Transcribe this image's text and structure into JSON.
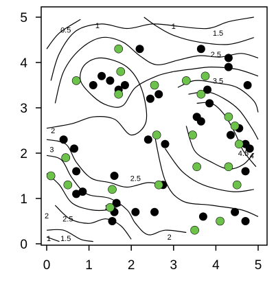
{
  "chart_data": {
    "type": "scatter",
    "title": "",
    "xlabel": "",
    "ylabel": "",
    "xlim": [
      0,
      5
    ],
    "ylim": [
      0,
      5
    ],
    "x_ticks": [
      0,
      1,
      2,
      3,
      4,
      5
    ],
    "y_ticks": [
      0,
      1,
      2,
      3,
      4,
      5
    ],
    "x_tick_labels": [
      "0",
      "1",
      "2",
      "3",
      "4",
      "5"
    ],
    "y_tick_labels": [
      "0",
      "1",
      "2",
      "3",
      "4",
      "5"
    ],
    "colors": {
      "black_points": "#000000",
      "green_points": "#6cc24a",
      "contours": "#000000"
    },
    "contour_labels": [
      {
        "text": "0.5",
        "x": 0.45,
        "y": 4.72
      },
      {
        "text": "1",
        "x": 1.2,
        "y": 4.82
      },
      {
        "text": "1",
        "x": 3.0,
        "y": 4.8
      },
      {
        "text": "1.5",
        "x": 4.05,
        "y": 4.65
      },
      {
        "text": "2.5",
        "x": 4.0,
        "y": 4.18
      },
      {
        "text": "3.5",
        "x": 4.05,
        "y": 3.6
      },
      {
        "text": "4.5",
        "x": 4.65,
        "y": 2.0
      },
      {
        "text": "4",
        "x": 4.85,
        "y": 1.95
      },
      {
        "text": "2",
        "x": 0.15,
        "y": 2.5
      },
      {
        "text": "3",
        "x": 0.12,
        "y": 2.08
      },
      {
        "text": "2.5",
        "x": 2.1,
        "y": 1.45
      },
      {
        "text": "3.5",
        "x": 1.5,
        "y": 0.8
      },
      {
        "text": "2",
        "x": 0.0,
        "y": 0.62
      },
      {
        "text": "2.5",
        "x": 0.5,
        "y": 0.55
      },
      {
        "text": "1.5",
        "x": 0.45,
        "y": 0.12
      },
      {
        "text": "1",
        "x": 0.05,
        "y": 0.12
      },
      {
        "text": "2",
        "x": 2.9,
        "y": 0.15
      }
    ],
    "contours": [
      [
        [
          0.0,
          4.3
        ],
        [
          0.3,
          4.65
        ],
        [
          0.8,
          4.95
        ]
      ],
      [
        [
          0.1,
          3.6
        ],
        [
          0.3,
          4.2
        ],
        [
          0.7,
          4.7
        ],
        [
          1.3,
          4.85
        ],
        [
          1.9,
          4.75
        ],
        [
          2.5,
          4.85
        ],
        [
          3.1,
          4.8
        ]
      ],
      [
        [
          3.1,
          4.8
        ],
        [
          3.8,
          4.75
        ],
        [
          4.3,
          4.9
        ],
        [
          4.9,
          5.0
        ]
      ],
      [
        [
          2.3,
          5.0
        ],
        [
          2.6,
          4.8
        ],
        [
          3.0,
          4.6
        ],
        [
          3.6,
          4.45
        ],
        [
          4.3,
          4.4
        ],
        [
          4.9,
          4.55
        ]
      ],
      [
        [
          0.2,
          3.1
        ],
        [
          0.4,
          3.8
        ],
        [
          0.8,
          4.3
        ],
        [
          1.3,
          4.55
        ],
        [
          1.8,
          4.45
        ],
        [
          2.2,
          4.15
        ],
        [
          2.6,
          3.95
        ],
        [
          3.1,
          4.05
        ],
        [
          3.6,
          4.15
        ],
        [
          4.1,
          4.12
        ],
        [
          4.6,
          4.2
        ],
        [
          5.0,
          4.1
        ]
      ],
      [
        [
          0.0,
          2.55
        ],
        [
          0.6,
          2.65
        ],
        [
          1.1,
          2.8
        ],
        [
          1.6,
          2.75
        ],
        [
          2.0,
          2.4
        ],
        [
          2.35,
          2.7
        ],
        [
          2.25,
          3.4
        ],
        [
          1.9,
          3.9
        ],
        [
          1.3,
          4.1
        ],
        [
          0.9,
          3.95
        ],
        [
          0.8,
          3.6
        ],
        [
          1.1,
          3.25
        ],
        [
          1.45,
          3.05
        ],
        [
          1.8,
          3.05
        ],
        [
          2.1,
          3.45
        ],
        [
          2.6,
          3.7
        ],
        [
          3.0,
          3.8
        ]
      ],
      [
        [
          3.0,
          3.8
        ],
        [
          3.4,
          3.85
        ],
        [
          3.9,
          3.9
        ],
        [
          4.5,
          3.85
        ],
        [
          5.0,
          3.7
        ]
      ],
      [
        [
          3.1,
          3.45
        ],
        [
          3.5,
          3.6
        ],
        [
          4.0,
          3.55
        ],
        [
          4.5,
          3.45
        ],
        [
          4.9,
          3.15
        ],
        [
          5.0,
          2.9
        ]
      ],
      [
        [
          3.35,
          3.3
        ],
        [
          3.8,
          3.35
        ],
        [
          4.2,
          3.2
        ],
        [
          4.55,
          2.95
        ],
        [
          4.85,
          2.55
        ],
        [
          5.0,
          2.3
        ]
      ],
      [
        [
          3.55,
          3.1
        ],
        [
          3.9,
          3.1
        ],
        [
          4.2,
          2.85
        ],
        [
          4.45,
          2.45
        ],
        [
          4.65,
          2.05
        ],
        [
          4.95,
          1.7
        ]
      ],
      [
        [
          3.3,
          2.6
        ],
        [
          3.5,
          2.05
        ],
        [
          3.9,
          1.8
        ],
        [
          4.3,
          1.65
        ],
        [
          4.65,
          1.75
        ],
        [
          4.9,
          2.0
        ]
      ],
      [
        [
          2.8,
          2.1
        ],
        [
          3.2,
          1.6
        ],
        [
          3.7,
          1.3
        ],
        [
          4.4,
          1.15
        ],
        [
          4.9,
          1.2
        ]
      ],
      [
        [
          2.55,
          2.4
        ],
        [
          2.8,
          1.4
        ],
        [
          3.2,
          0.95
        ],
        [
          3.9,
          0.85
        ],
        [
          4.6,
          0.75
        ],
        [
          5.0,
          0.6
        ]
      ],
      [
        [
          0.0,
          2.3
        ],
        [
          0.45,
          2.2
        ],
        [
          0.7,
          1.8
        ],
        [
          1.05,
          1.45
        ],
        [
          1.5,
          1.35
        ],
        [
          1.9,
          1.25
        ],
        [
          2.4,
          1.35
        ],
        [
          2.75,
          1.3
        ]
      ],
      [
        [
          0.0,
          1.95
        ],
        [
          0.35,
          1.85
        ],
        [
          0.6,
          1.45
        ],
        [
          0.95,
          1.1
        ],
        [
          1.5,
          1.0
        ],
        [
          1.9,
          0.75
        ],
        [
          2.1,
          0.45
        ],
        [
          2.4,
          0.2
        ],
        [
          2.8,
          0.3
        ],
        [
          3.3,
          0.25
        ]
      ],
      [
        [
          0.0,
          1.55
        ],
        [
          0.3,
          1.3
        ],
        [
          0.6,
          0.9
        ],
        [
          1.05,
          0.75
        ],
        [
          1.45,
          0.75
        ],
        [
          1.75,
          0.85
        ]
      ],
      [
        [
          0.2,
          0.85
        ],
        [
          0.55,
          0.55
        ],
        [
          1.0,
          0.45
        ],
        [
          1.4,
          0.55
        ],
        [
          1.75,
          0.4
        ],
        [
          2.0,
          0.1
        ]
      ],
      [
        [
          0.0,
          0.3
        ],
        [
          0.4,
          0.3
        ],
        [
          0.8,
          0.1
        ],
        [
          1.1,
          0.05
        ]
      ],
      [
        [
          0.0,
          0.15
        ],
        [
          0.3,
          0.05
        ]
      ]
    ],
    "series": [
      {
        "marker_color": "black",
        "points": [
          [
            1.1,
            3.5
          ],
          [
            1.3,
            3.7
          ],
          [
            1.5,
            3.6
          ],
          [
            1.7,
            3.4
          ],
          [
            1.85,
            3.5
          ],
          [
            2.2,
            4.3
          ],
          [
            2.45,
            3.2
          ],
          [
            2.65,
            3.3
          ],
          [
            3.65,
            4.3
          ],
          [
            4.3,
            4.1
          ],
          [
            4.3,
            3.9
          ],
          [
            4.75,
            3.5
          ],
          [
            3.8,
            3.4
          ],
          [
            3.85,
            3.1
          ],
          [
            3.55,
            2.8
          ],
          [
            3.65,
            2.7
          ],
          [
            4.35,
            2.4
          ],
          [
            4.55,
            2.55
          ],
          [
            4.7,
            2.2
          ],
          [
            4.8,
            2.1
          ],
          [
            4.7,
            1.6
          ],
          [
            2.4,
            2.3
          ],
          [
            2.8,
            2.2
          ],
          [
            2.75,
            1.3
          ],
          [
            0.4,
            2.3
          ],
          [
            0.65,
            2.1
          ],
          [
            0.7,
            1.6
          ],
          [
            0.7,
            1.1
          ],
          [
            0.85,
            1.15
          ],
          [
            1.6,
            1.5
          ],
          [
            1.65,
            0.9
          ],
          [
            1.6,
            0.7
          ],
          [
            1.55,
            0.5
          ],
          [
            2.1,
            0.7
          ],
          [
            2.55,
            0.7
          ],
          [
            3.7,
            0.6
          ],
          [
            4.45,
            0.7
          ],
          [
            4.7,
            0.5
          ]
        ]
      },
      {
        "marker_color": "green",
        "points": [
          [
            0.7,
            3.6
          ],
          [
            1.7,
            4.3
          ],
          [
            1.75,
            3.8
          ],
          [
            1.7,
            3.3
          ],
          [
            2.55,
            3.5
          ],
          [
            3.3,
            3.6
          ],
          [
            3.75,
            3.7
          ],
          [
            3.65,
            3.3
          ],
          [
            4.3,
            2.8
          ],
          [
            4.45,
            2.6
          ],
          [
            4.55,
            2.2
          ],
          [
            2.6,
            2.4
          ],
          [
            3.45,
            2.4
          ],
          [
            3.55,
            1.7
          ],
          [
            4.3,
            1.7
          ],
          [
            4.5,
            1.3
          ],
          [
            0.45,
            1.9
          ],
          [
            0.1,
            1.5
          ],
          [
            0.5,
            1.3
          ],
          [
            1.55,
            1.2
          ],
          [
            2.65,
            1.3
          ],
          [
            1.5,
            0.8
          ],
          [
            4.1,
            0.5
          ],
          [
            3.5,
            0.3
          ]
        ]
      }
    ]
  }
}
